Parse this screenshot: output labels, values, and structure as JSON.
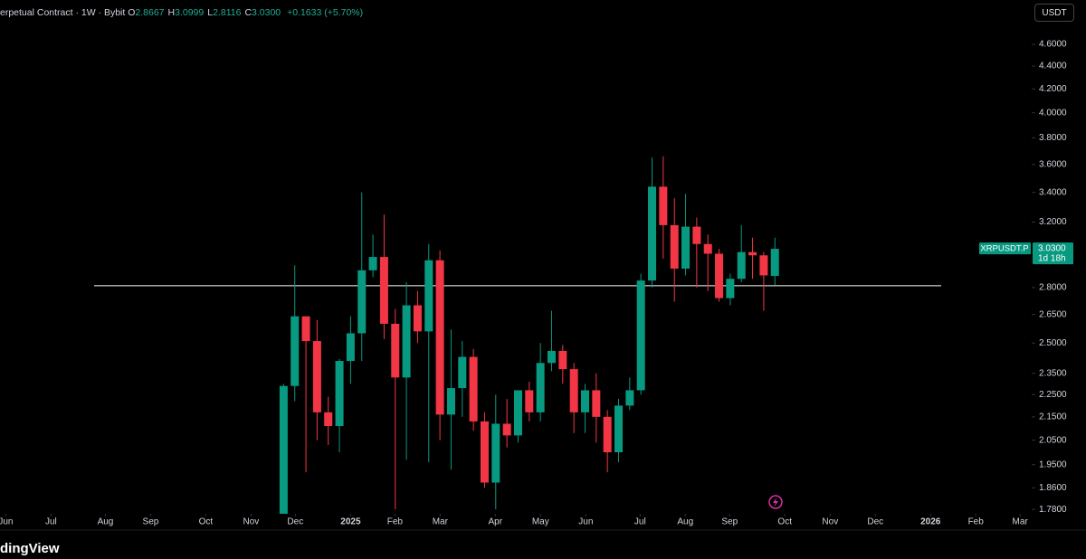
{
  "header": {
    "title": "erpetual Contract · 1W · Bybit",
    "ohlc": [
      {
        "key": "O",
        "value": "2.8667"
      },
      {
        "key": "H",
        "value": "3.0999"
      },
      {
        "key": "L",
        "value": "2.8116"
      },
      {
        "key": "C",
        "value": "3.0300"
      }
    ],
    "change": "+0.1633 (+5.70%)",
    "currency": "USDT"
  },
  "watermark": "dingView",
  "chart_data": {
    "type": "candlestick",
    "log_scale": true,
    "up_color": "#089981",
    "down_color": "#f23645",
    "x": [
      0,
      1,
      2,
      3,
      4,
      5,
      6,
      7,
      8,
      9,
      10,
      11,
      12,
      13,
      14,
      15,
      16,
      17,
      18,
      19,
      20,
      21,
      22,
      23,
      24,
      25,
      26,
      27,
      28,
      29,
      30,
      31,
      32,
      33,
      34,
      35,
      36,
      37,
      38,
      39,
      40,
      41,
      42,
      43,
      44
    ],
    "open": [
      1.76,
      2.29,
      2.64,
      2.51,
      2.17,
      2.11,
      2.41,
      2.55,
      2.9,
      2.98,
      2.6,
      2.33,
      2.7,
      2.56,
      2.96,
      2.16,
      2.28,
      2.43,
      2.13,
      1.88,
      2.12,
      2.07,
      2.27,
      2.17,
      2.4,
      2.46,
      2.37,
      2.17,
      2.27,
      2.15,
      2.0,
      2.2,
      2.27,
      2.84,
      3.44,
      3.18,
      2.91,
      3.17,
      3.06,
      3.0,
      2.74,
      2.85,
      3.01,
      2.99,
      2.8667
    ],
    "high": [
      2.3,
      2.93,
      2.64,
      2.62,
      2.24,
      2.42,
      2.64,
      3.4,
      3.12,
      3.25,
      2.68,
      2.83,
      2.78,
      3.06,
      3.02,
      2.57,
      2.51,
      2.47,
      2.17,
      2.25,
      2.23,
      2.27,
      2.31,
      2.5,
      2.67,
      2.49,
      2.4,
      2.3,
      2.35,
      2.18,
      2.23,
      2.33,
      2.88,
      3.65,
      3.66,
      3.36,
      3.39,
      3.23,
      3.12,
      3.03,
      2.88,
      3.18,
      3.1,
      3.01,
      3.0999
    ],
    "low": [
      1.7,
      2.22,
      1.92,
      2.05,
      2.03,
      2.0,
      2.3,
      2.41,
      2.86,
      2.52,
      1.78,
      1.97,
      2.5,
      1.96,
      2.05,
      1.93,
      2.15,
      2.09,
      1.86,
      1.78,
      2.02,
      2.04,
      2.13,
      2.13,
      2.36,
      2.3,
      2.08,
      2.08,
      2.04,
      1.92,
      1.96,
      2.18,
      2.25,
      2.8,
      2.97,
      2.72,
      2.87,
      2.8,
      2.78,
      2.72,
      2.7,
      2.83,
      2.85,
      2.67,
      2.8116
    ],
    "close": [
      2.29,
      2.64,
      2.51,
      2.17,
      2.11,
      2.41,
      2.55,
      2.9,
      2.98,
      2.6,
      2.33,
      2.7,
      2.56,
      2.96,
      2.16,
      2.28,
      2.43,
      2.13,
      1.88,
      2.12,
      2.07,
      2.27,
      2.17,
      2.4,
      2.46,
      2.37,
      2.17,
      2.27,
      2.15,
      2.0,
      2.2,
      2.27,
      2.84,
      3.44,
      3.18,
      2.91,
      3.17,
      3.06,
      3.0,
      2.74,
      2.85,
      3.01,
      2.99,
      2.87,
      3.03
    ],
    "xlim": [
      -25.4,
      67
    ],
    "xticks": [
      {
        "value": -24.88,
        "label": "Jun"
      },
      {
        "value": -20.83,
        "label": "Jul"
      },
      {
        "value": -15.96,
        "label": "Aug"
      },
      {
        "value": -11.91,
        "label": "Sep"
      },
      {
        "value": -6.97,
        "label": "Oct"
      },
      {
        "value": -2.92,
        "label": "Nov"
      },
      {
        "value": 1.05,
        "label": "Dec"
      },
      {
        "value": 6.0,
        "label": "2025"
      },
      {
        "value": 9.97,
        "label": "Feb"
      },
      {
        "value": 14.02,
        "label": "Mar"
      },
      {
        "value": 18.96,
        "label": "Apr"
      },
      {
        "value": 23.01,
        "label": "May"
      },
      {
        "value": 27.07,
        "label": "Jun"
      },
      {
        "value": 31.93,
        "label": "Jul"
      },
      {
        "value": 35.98,
        "label": "Aug"
      },
      {
        "value": 39.95,
        "label": "Sep"
      },
      {
        "value": 44.89,
        "label": "Oct"
      },
      {
        "value": 48.95,
        "label": "Nov"
      },
      {
        "value": 53.0,
        "label": "Dec"
      },
      {
        "value": 57.94,
        "label": "2026"
      },
      {
        "value": 61.99,
        "label": "Feb"
      },
      {
        "value": 65.96,
        "label": "Mar"
      }
    ],
    "ylim": [
      1.764,
      5.036
    ],
    "yticks": [
      {
        "value": 4.6,
        "label": "4.6000"
      },
      {
        "value": 4.4,
        "label": "4.4000"
      },
      {
        "value": 4.2,
        "label": "4.2000"
      },
      {
        "value": 4.0,
        "label": "4.0000"
      },
      {
        "value": 3.8,
        "label": "3.8000"
      },
      {
        "value": 3.6,
        "label": "3.6000"
      },
      {
        "value": 3.4,
        "label": "3.4000"
      },
      {
        "value": 3.2,
        "label": "3.2000"
      },
      {
        "value": 2.8,
        "label": "2.8000"
      },
      {
        "value": 2.65,
        "label": "2.6500"
      },
      {
        "value": 2.5,
        "label": "2.5000"
      },
      {
        "value": 2.35,
        "label": "2.3500"
      },
      {
        "value": 2.25,
        "label": "2.2500"
      },
      {
        "value": 2.15,
        "label": "2.1500"
      },
      {
        "value": 2.05,
        "label": "2.0500"
      },
      {
        "value": 1.95,
        "label": "1.9500"
      },
      {
        "value": 1.86,
        "label": "1.8600"
      },
      {
        "value": 1.78,
        "label": "1.7800"
      }
    ],
    "hline": 2.81,
    "hline_color": "#ffffff",
    "price_label": {
      "name": "XRPUSDT.P",
      "value_label": "3.0300",
      "countdown": "1d 18h"
    }
  }
}
